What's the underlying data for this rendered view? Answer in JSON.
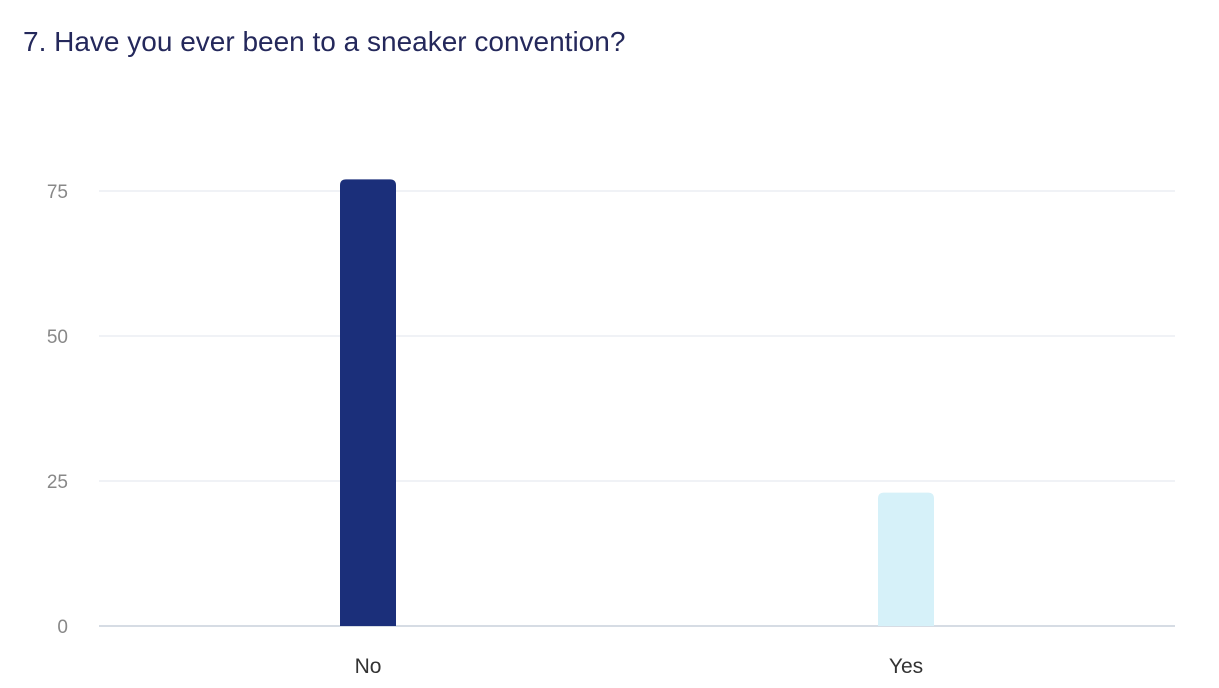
{
  "chart_data": {
    "type": "bar",
    "title": "7. Have you ever been to a sneaker convention?",
    "categories": [
      "No",
      "Yes"
    ],
    "values": [
      77,
      23
    ],
    "colors": [
      "#1b2f7a",
      "#d6f1f9"
    ],
    "ylim": [
      0,
      75
    ],
    "yticks": [
      0,
      25,
      50,
      75
    ],
    "grid": true,
    "xlabel": "",
    "ylabel": ""
  }
}
